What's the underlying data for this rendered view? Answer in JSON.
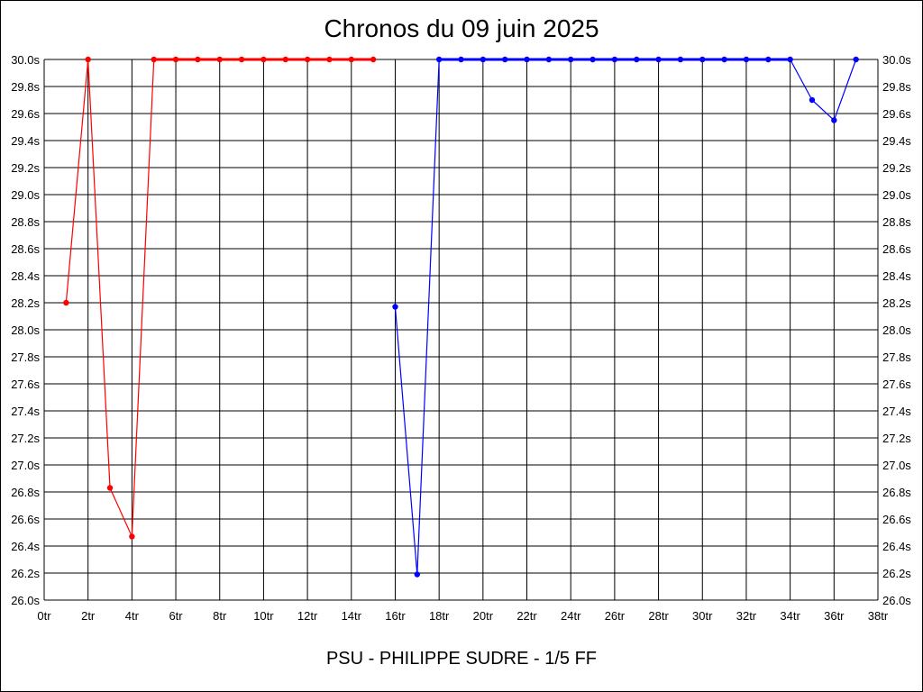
{
  "chart_data": {
    "type": "line",
    "title": "Chronos du 09 juin 2025",
    "footer": "PSU - PHILIPPE SUDRE - 1/5 FF",
    "xlim": [
      0,
      38
    ],
    "ylim": [
      26.0,
      30.0
    ],
    "x_ticks": [
      "0tr",
      "2tr",
      "4tr",
      "6tr",
      "8tr",
      "10tr",
      "12tr",
      "14tr",
      "16tr",
      "18tr",
      "20tr",
      "22tr",
      "24tr",
      "26tr",
      "28tr",
      "30tr",
      "32tr",
      "34tr",
      "36tr",
      "38tr"
    ],
    "y_ticks": [
      "26.0s",
      "26.2s",
      "26.4s",
      "26.6s",
      "26.8s",
      "27.0s",
      "27.2s",
      "27.4s",
      "27.6s",
      "27.8s",
      "28.0s",
      "28.2s",
      "28.4s",
      "28.6s",
      "28.8s",
      "29.0s",
      "29.2s",
      "29.4s",
      "29.6s",
      "29.8s",
      "30.0s"
    ],
    "grid": true,
    "series": [
      {
        "color": "#ff0000",
        "x": [
          1,
          2,
          3,
          4,
          5,
          6,
          7,
          8,
          9,
          10,
          11,
          12,
          13,
          14,
          15
        ],
        "y": [
          28.2,
          30.0,
          26.83,
          26.47,
          30.0,
          30.0,
          30.0,
          30.0,
          30.0,
          30.0,
          30.0,
          30.0,
          30.0,
          30.0,
          30.0
        ]
      },
      {
        "color": "#0000ff",
        "x": [
          16,
          17,
          18,
          19,
          20,
          21,
          22,
          23,
          24,
          25,
          26,
          27,
          28,
          29,
          30,
          31,
          32,
          33,
          34,
          35,
          36,
          37
        ],
        "y": [
          28.17,
          26.19,
          30.0,
          30.0,
          30.0,
          30.0,
          30.0,
          30.0,
          30.0,
          30.0,
          30.0,
          30.0,
          30.0,
          30.0,
          30.0,
          30.0,
          30.0,
          30.0,
          30.0,
          29.7,
          29.55,
          30.0
        ]
      }
    ]
  }
}
